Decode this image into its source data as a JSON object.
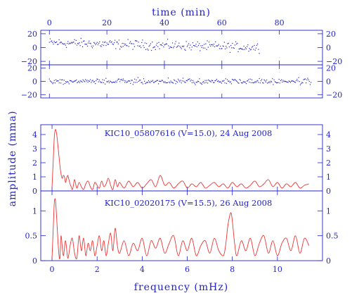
{
  "colors": {
    "axis": "#2222cc",
    "line": "#ee3333",
    "points": "#2222cc",
    "background": "#ffffff"
  },
  "labels": {
    "top_xlabel": "time (min)",
    "bottom_xlabel": "frequency (mHz)",
    "ylabel": "amplitude (mma)",
    "panel3_title": "KIC10_05807616 (V=15.0), 24 Aug 2008",
    "panel4_title": "KIC10_02020175 (V=15.5), 26 Aug 2008"
  },
  "chart_data": [
    {
      "type": "scatter",
      "title": "",
      "xlabel": "time (min)",
      "ylabel": "",
      "xlim": [
        -3,
        95
      ],
      "ylim": [
        -25,
        25
      ],
      "xticks": [
        0,
        20,
        40,
        60,
        80
      ],
      "yticks": [
        20,
        0,
        -20
      ],
      "x_range_data": [
        0,
        73
      ],
      "trend": "mean declines linearly from about 7 at t=0 to about 0 at t=73",
      "noise_spread": 10,
      "n_points": 260
    },
    {
      "type": "scatter",
      "title": "",
      "xlabel": "",
      "ylabel": "",
      "xlim": [
        -3,
        95
      ],
      "ylim": [
        -25,
        25
      ],
      "yticks": [
        20,
        0,
        -20
      ],
      "x_range_data": [
        0,
        91
      ],
      "trend": "constant mean near 0",
      "noise_spread": 6,
      "n_points": 320
    },
    {
      "type": "line",
      "title": "KIC10_05807616 (V=15.0), 24 Aug 2008",
      "xlabel": "",
      "ylabel": "amplitude (mma)",
      "xlim": [
        -0.5,
        12.0
      ],
      "ylim": [
        0,
        4.7
      ],
      "yticks": [
        0,
        1,
        2,
        3,
        4
      ],
      "x": [
        0.0,
        0.05,
        0.1,
        0.15,
        0.2,
        0.25,
        0.3,
        0.35,
        0.4,
        0.45,
        0.5,
        0.55,
        0.6,
        0.65,
        0.7,
        0.75,
        0.8,
        0.85,
        0.9,
        0.95,
        1.0,
        1.1,
        1.2,
        1.3,
        1.4,
        1.5,
        1.6,
        1.7,
        1.8,
        1.9,
        2.0,
        2.1,
        2.2,
        2.3,
        2.4,
        2.5,
        2.6,
        2.7,
        2.8,
        2.9,
        3.0,
        3.2,
        3.4,
        3.6,
        3.8,
        4.0,
        4.2,
        4.4,
        4.6,
        4.8,
        5.0,
        5.2,
        5.4,
        5.6,
        5.8,
        6.0,
        6.2,
        6.4,
        6.6,
        6.8,
        7.0,
        7.2,
        7.4,
        7.6,
        7.8,
        8.0,
        8.2,
        8.4,
        8.6,
        8.8,
        9.0,
        9.2,
        9.4,
        9.6,
        9.8,
        10.0,
        10.2,
        10.4,
        10.6,
        10.8,
        11.0,
        11.2,
        11.4
      ],
      "y": [
        0.3,
        2.0,
        3.8,
        4.35,
        4.1,
        3.4,
        2.6,
        1.8,
        1.2,
        0.9,
        1.1,
        1.0,
        0.6,
        0.9,
        1.1,
        0.8,
        0.5,
        0.3,
        0.1,
        0.4,
        0.8,
        0.2,
        0.6,
        0.3,
        0.1,
        0.5,
        0.7,
        0.3,
        0.1,
        0.6,
        0.4,
        0.2,
        0.7,
        0.3,
        0.5,
        0.9,
        0.4,
        0.1,
        0.8,
        0.3,
        0.6,
        0.2,
        0.7,
        0.3,
        0.6,
        0.2,
        0.5,
        0.8,
        0.3,
        1.1,
        0.4,
        0.6,
        0.2,
        0.5,
        0.7,
        0.2,
        0.5,
        0.3,
        0.6,
        0.2,
        0.4,
        0.6,
        0.3,
        0.5,
        0.2,
        0.6,
        0.3,
        0.5,
        0.2,
        0.4,
        0.7,
        0.3,
        0.5,
        0.8,
        0.3,
        0.6,
        0.2,
        0.5,
        0.3,
        0.6,
        0.2,
        0.4,
        0.5
      ]
    },
    {
      "type": "line",
      "title": "KIC10_02020175 (V=15.5), 26 Aug 2008",
      "xlabel": "frequency (mHz)",
      "ylabel": "",
      "xlim": [
        -0.5,
        12.0
      ],
      "ylim": [
        0,
        1.4
      ],
      "xticks": [
        0,
        2,
        4,
        6,
        8,
        10
      ],
      "yticks": [
        0,
        0.5,
        1
      ],
      "x": [
        0.0,
        0.05,
        0.1,
        0.15,
        0.2,
        0.25,
        0.3,
        0.35,
        0.4,
        0.5,
        0.6,
        0.7,
        0.8,
        0.9,
        1.0,
        1.1,
        1.2,
        1.3,
        1.4,
        1.5,
        1.6,
        1.7,
        1.8,
        1.9,
        2.0,
        2.1,
        2.2,
        2.3,
        2.4,
        2.5,
        2.6,
        2.7,
        2.8,
        2.9,
        3.0,
        3.2,
        3.4,
        3.6,
        3.8,
        4.0,
        4.2,
        4.4,
        4.6,
        4.8,
        5.0,
        5.2,
        5.4,
        5.6,
        5.8,
        6.0,
        6.2,
        6.4,
        6.6,
        6.8,
        7.0,
        7.2,
        7.4,
        7.6,
        7.7,
        7.8,
        7.9,
        7.95,
        8.0,
        8.1,
        8.2,
        8.4,
        8.6,
        8.8,
        9.0,
        9.2,
        9.4,
        9.6,
        9.8,
        10.0,
        10.2,
        10.4,
        10.6,
        10.8,
        11.0,
        11.2,
        11.4
      ],
      "y": [
        0.05,
        0.6,
        1.15,
        1.22,
        0.9,
        0.5,
        0.15,
        0.05,
        0.5,
        0.1,
        0.4,
        0.05,
        0.3,
        0.45,
        0.15,
        0.05,
        0.5,
        0.2,
        0.45,
        0.1,
        0.35,
        0.2,
        0.4,
        0.1,
        0.3,
        0.5,
        0.2,
        0.4,
        0.1,
        0.35,
        0.55,
        0.2,
        0.65,
        0.3,
        0.15,
        0.4,
        0.1,
        0.35,
        0.2,
        0.45,
        0.1,
        0.4,
        0.25,
        0.45,
        0.15,
        0.35,
        0.5,
        0.1,
        0.4,
        0.2,
        0.45,
        0.1,
        0.3,
        0.4,
        0.15,
        0.45,
        0.2,
        0.1,
        0.3,
        0.7,
        0.93,
        0.95,
        0.8,
        0.35,
        0.1,
        0.4,
        0.2,
        0.45,
        0.1,
        0.35,
        0.5,
        0.15,
        0.4,
        0.1,
        0.35,
        0.45,
        0.2,
        0.5,
        0.15,
        0.45,
        0.3
      ]
    }
  ]
}
